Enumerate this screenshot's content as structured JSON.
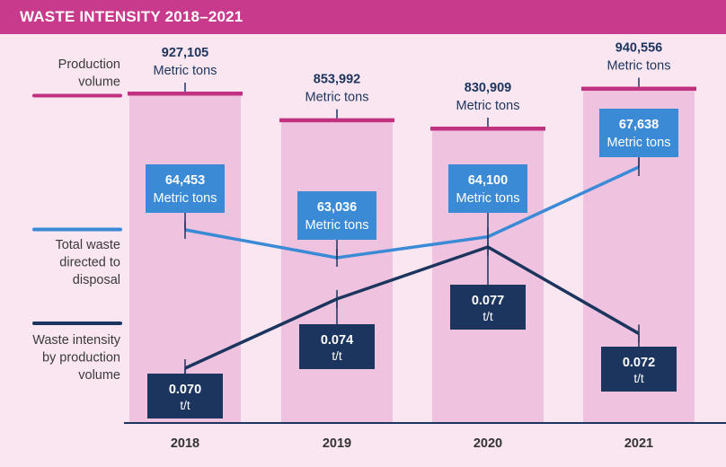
{
  "header": {
    "title": "WASTE INTENSITY 2018–2021"
  },
  "legend": {
    "production": [
      "Production",
      "volume"
    ],
    "waste": [
      "Total waste",
      "directed to",
      "disposal"
    ],
    "intensity": [
      "Waste intensity",
      "by production",
      "volume"
    ]
  },
  "colors": {
    "banner": "#c83a8c",
    "background": "#f9e6f1",
    "bar": "#efc3df",
    "bar_cap": "#c0317f",
    "waste_line": "#3b8ad6",
    "intensity_line": "#1c355e",
    "label_dark": "#1c355e"
  },
  "chart_data": {
    "type": "bar",
    "categories": [
      "2018",
      "2019",
      "2020",
      "2021"
    ],
    "series": [
      {
        "name": "Production volume",
        "values": [
          927105,
          853992,
          830909,
          940556
        ],
        "labels": [
          "927,105",
          "853,992",
          "830,909",
          "940,556"
        ],
        "unit": "Metric tons"
      },
      {
        "name": "Total waste directed to disposal",
        "values": [
          64453,
          63036,
          64100,
          67638
        ],
        "labels": [
          "64,453",
          "63,036",
          "64,100",
          "67,638"
        ],
        "unit": "Metric tons"
      },
      {
        "name": "Waste intensity by production volume",
        "values": [
          0.07,
          0.074,
          0.077,
          0.072
        ],
        "labels": [
          "0.070",
          "0.074",
          "0.077",
          "0.072"
        ],
        "unit": "t/t"
      }
    ]
  }
}
